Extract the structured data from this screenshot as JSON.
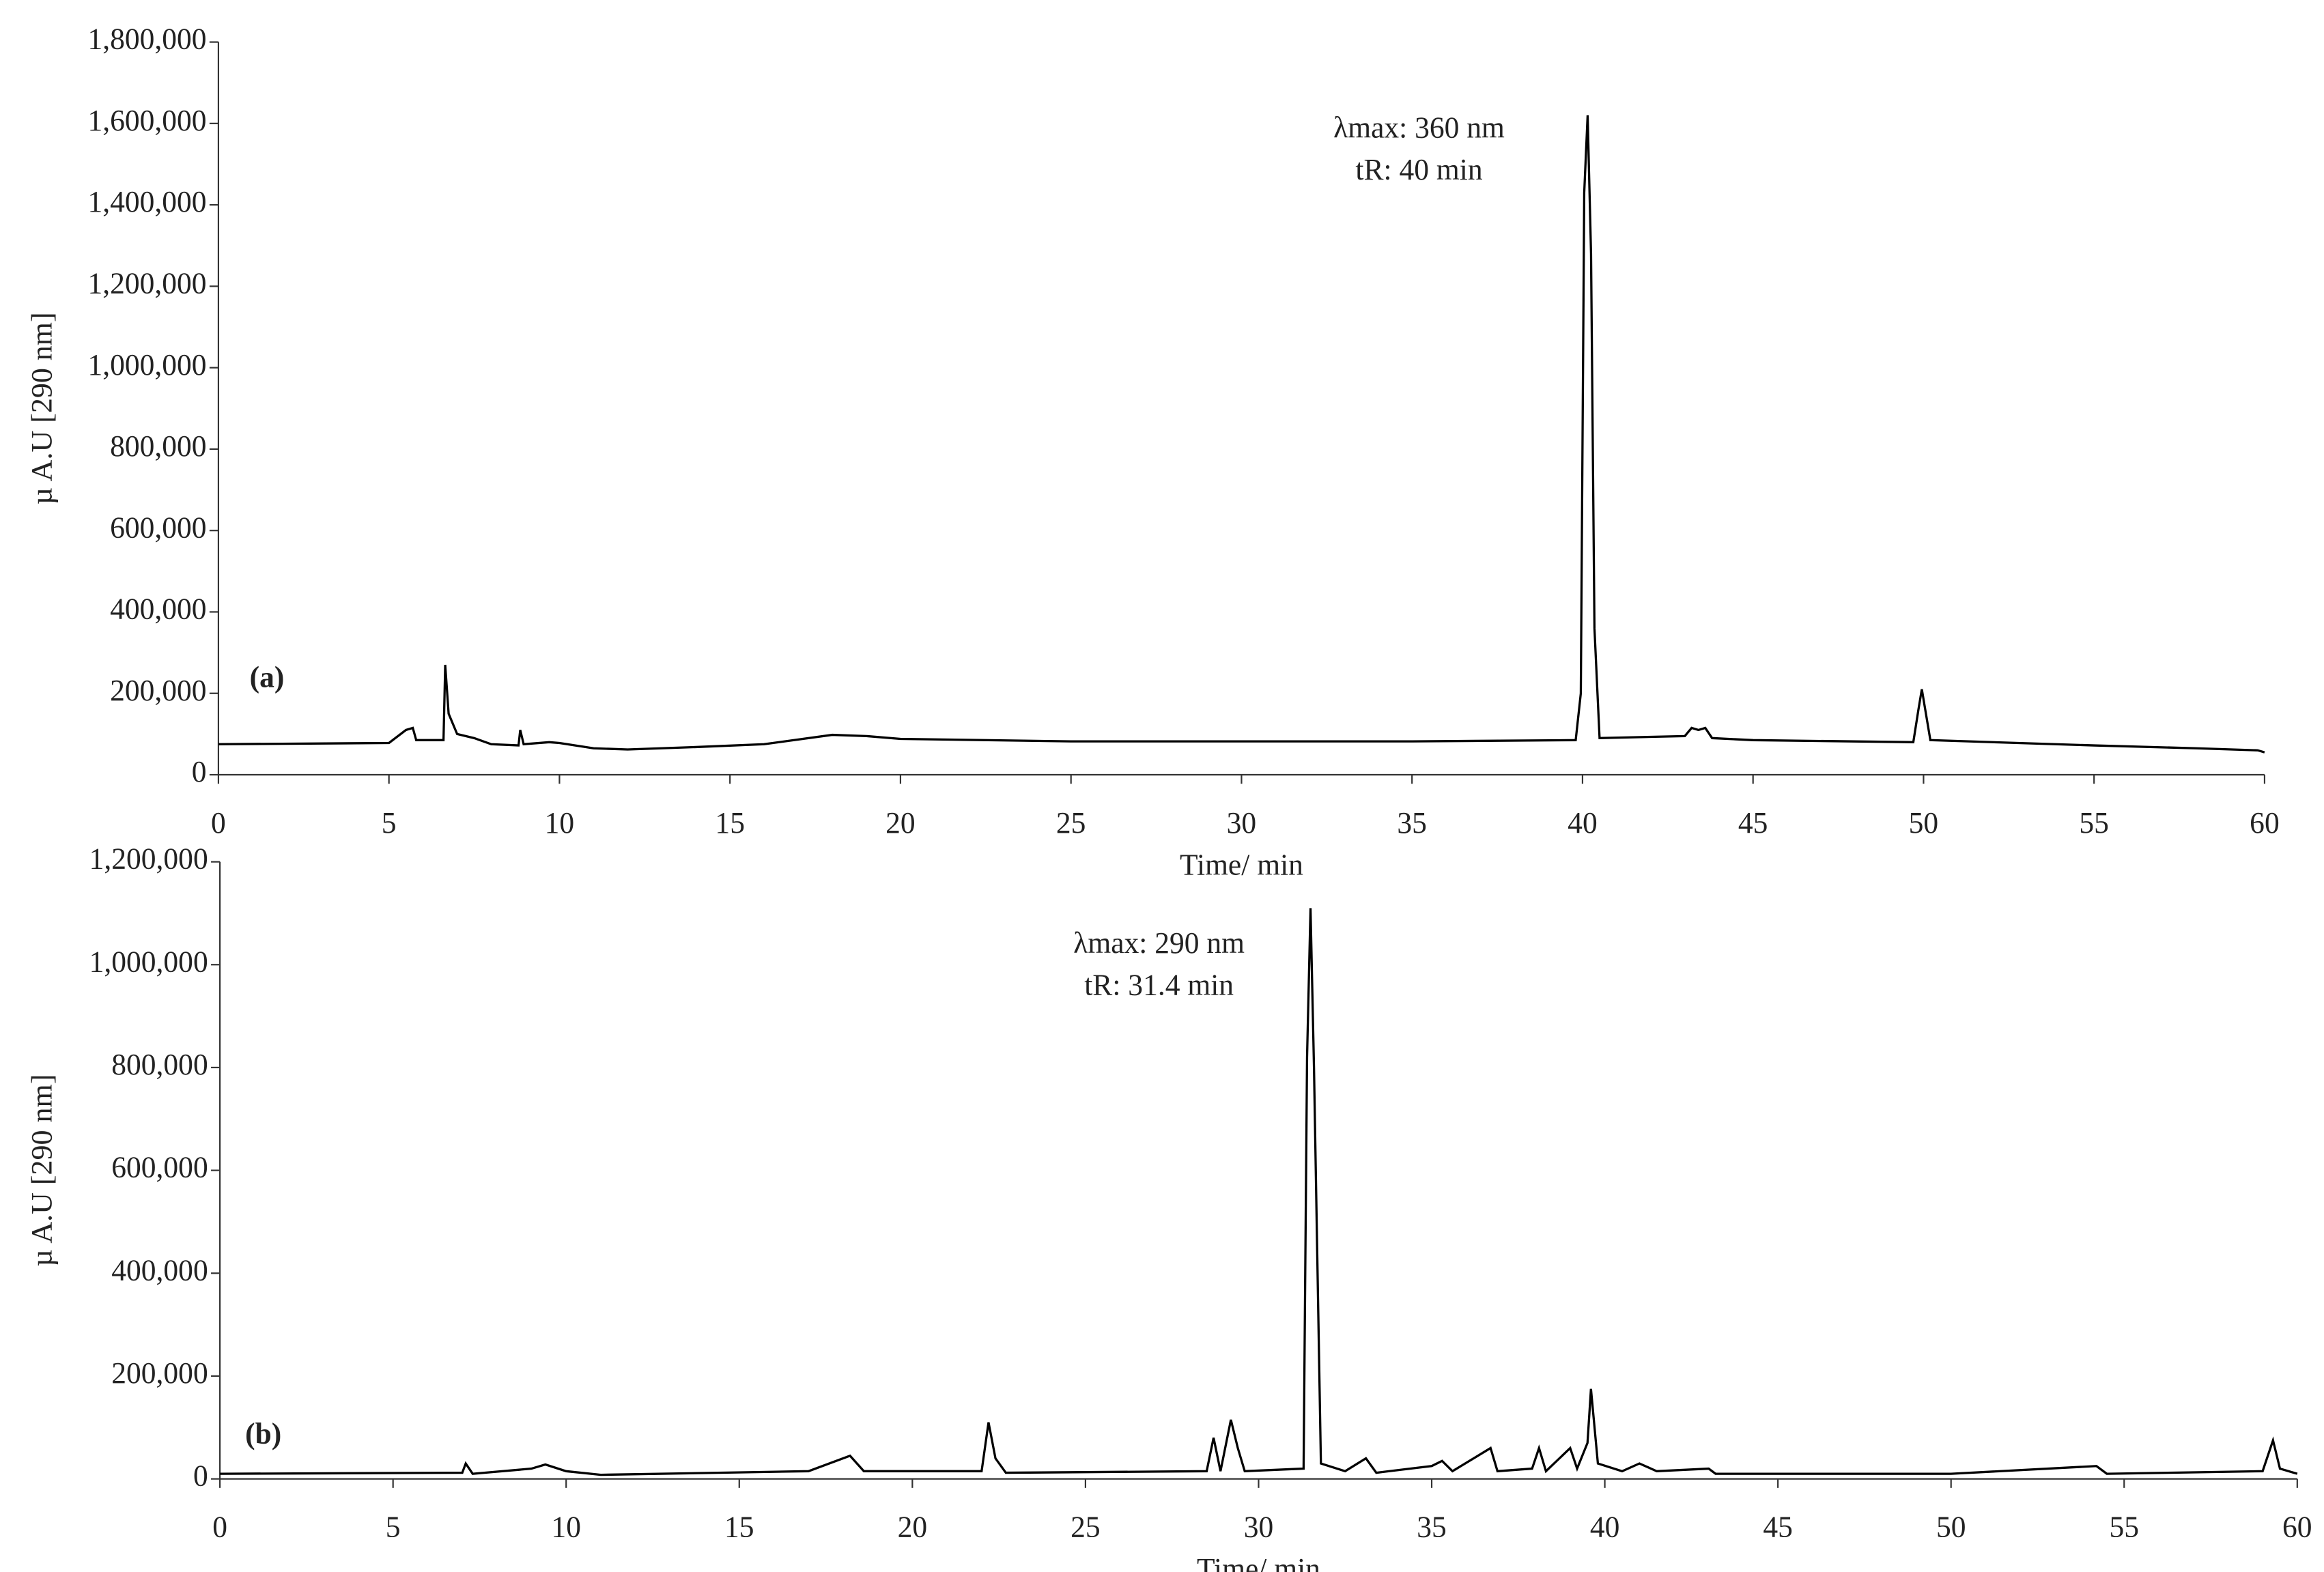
{
  "chart_data": [
    {
      "type": "line",
      "panel_label": "(a)",
      "ylabel": "µ A.U [290 nm]",
      "xlabel": "Time/ min",
      "annotations": [
        "λmax: 360 nm",
        "tR: 40 min"
      ],
      "xlim": [
        0,
        60
      ],
      "xticks": [
        0,
        5,
        10,
        15,
        20,
        25,
        30,
        35,
        40,
        45,
        50,
        55,
        60
      ],
      "ylim": [
        0,
        1800000
      ],
      "yticks": [
        0,
        {
          "value": 200000,
          "label": "200,000"
        },
        {
          "value": 400000,
          "label": "400,000"
        },
        {
          "value": 600000,
          "label": "600,000"
        },
        {
          "value": 800000,
          "label": "800,000"
        },
        {
          "value": 1000000,
          "label": "1,000,000"
        },
        {
          "value": 1200000,
          "label": "1,200,000"
        },
        {
          "value": 1400000,
          "label": "1,400,000"
        },
        {
          "value": 1600000,
          "label": "1,600,000"
        },
        {
          "value": 1800000,
          "label": "1,800,000"
        }
      ],
      "color": "#000000",
      "x": [
        0,
        5,
        5.5,
        5.7,
        5.8,
        6.6,
        6.65,
        6.75,
        7,
        7.5,
        8,
        8.8,
        8.85,
        8.95,
        9.7,
        10,
        11,
        12,
        14,
        16,
        18,
        19,
        20,
        25,
        30,
        35,
        39.8,
        39.95,
        40.05,
        40.15,
        40.25,
        40.35,
        40.5,
        43,
        43.2,
        43.4,
        43.6,
        43.8,
        45,
        49.7,
        49.85,
        49.95,
        50.05,
        50.2,
        55,
        58,
        59.8,
        60
      ],
      "values": [
        75000,
        78000,
        110000,
        115000,
        85000,
        85000,
        270000,
        150000,
        100000,
        90000,
        75000,
        72000,
        110000,
        75000,
        80000,
        78000,
        65000,
        62000,
        68000,
        75000,
        98000,
        95000,
        88000,
        82000,
        82000,
        82000,
        85000,
        200000,
        1430000,
        1620000,
        1280000,
        360000,
        90000,
        95000,
        115000,
        110000,
        115000,
        90000,
        85000,
        80000,
        160000,
        210000,
        160000,
        85000,
        72000,
        65000,
        60000,
        55000
      ]
    },
    {
      "type": "line",
      "panel_label": "(b)",
      "ylabel": "µ A.U [290 nm]",
      "xlabel": "Time/ min",
      "annotations": [
        "λmax: 290 nm",
        "tR: 31.4 min"
      ],
      "xlim": [
        0,
        60
      ],
      "xticks": [
        0,
        5,
        10,
        15,
        20,
        25,
        30,
        35,
        40,
        45,
        50,
        55,
        60
      ],
      "ylim": [
        0,
        1200000
      ],
      "yticks": [
        0,
        {
          "value": 200000,
          "label": "200,000"
        },
        {
          "value": 400000,
          "label": "400,000"
        },
        {
          "value": 600000,
          "label": "600,000"
        },
        {
          "value": 800000,
          "label": "800,000"
        },
        {
          "value": 1000000,
          "label": "1,000,000"
        },
        {
          "value": 1200000,
          "label": "1,200,000"
        }
      ],
      "color": "#000000",
      "x": [
        0,
        7,
        7.1,
        7.3,
        9,
        9.4,
        10,
        11,
        17,
        18.2,
        18.6,
        22,
        22.2,
        22.4,
        22.7,
        28.5,
        28.7,
        28.9,
        29.2,
        29.4,
        29.6,
        31.3,
        31.4,
        31.5,
        31.6,
        31.8,
        32.5,
        33.1,
        33.4,
        35,
        35.3,
        35.6,
        36.7,
        36.9,
        37.9,
        38.1,
        38.3,
        39,
        39.2,
        39.5,
        39.6,
        39.8,
        40.5,
        41,
        41.5,
        43,
        43.2,
        50,
        54.2,
        54.5,
        59,
        59.3,
        59.5,
        60
      ],
      "values": [
        10000,
        12000,
        30000,
        10000,
        20000,
        28000,
        15000,
        8000,
        15000,
        45000,
        15000,
        15000,
        110000,
        40000,
        12000,
        15000,
        80000,
        15000,
        115000,
        60000,
        15000,
        20000,
        820000,
        1110000,
        800000,
        30000,
        15000,
        40000,
        12000,
        25000,
        35000,
        15000,
        60000,
        15000,
        20000,
        60000,
        15000,
        60000,
        20000,
        70000,
        175000,
        30000,
        15000,
        30000,
        15000,
        20000,
        10000,
        10000,
        25000,
        10000,
        15000,
        75000,
        20000,
        10000
      ]
    }
  ]
}
